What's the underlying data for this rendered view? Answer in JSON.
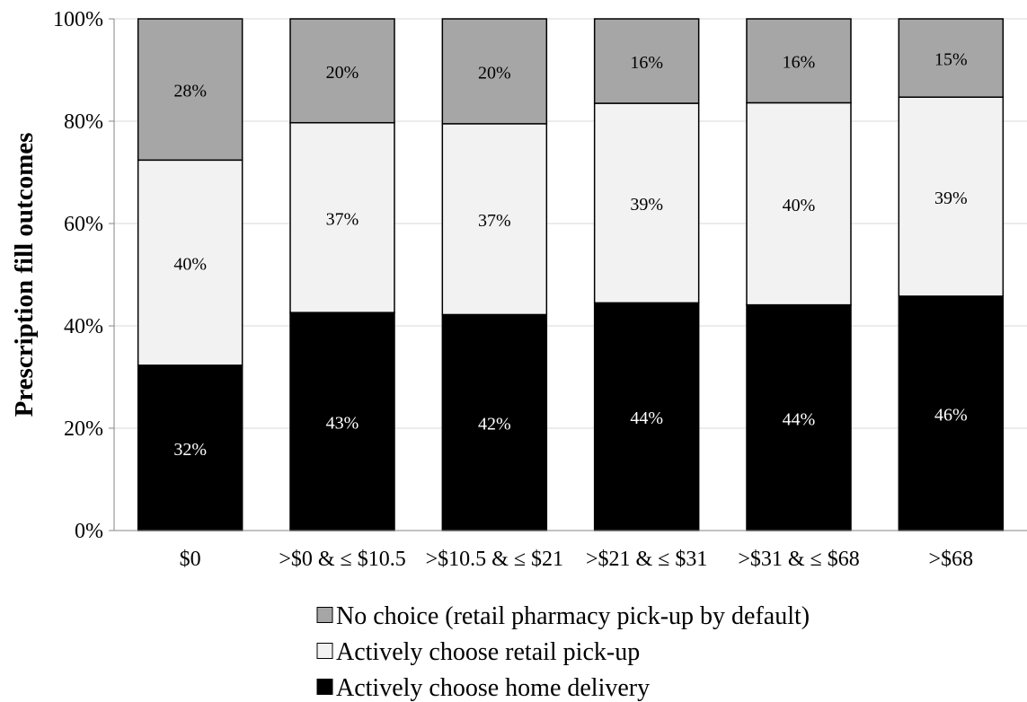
{
  "chart_data": {
    "type": "bar",
    "stacked": true,
    "percent": true,
    "ylabel": "Prescription fill outcomes",
    "xlabel": "",
    "ylim": [
      0,
      100
    ],
    "yticks": [
      "0%",
      "20%",
      "40%",
      "60%",
      "80%",
      "100%"
    ],
    "grid": true,
    "legend_position": "bottom",
    "categories": [
      "$0",
      ">$0 & ≤ $10.5",
      ">$10.5 & ≤ $21",
      ">$21 & ≤ $31",
      ">$31 & ≤ $68",
      ">$68"
    ],
    "series": [
      {
        "name": "Actively choose home delivery",
        "color": "#000000",
        "label_color": "#ffffff",
        "values": [
          32.3,
          42.6,
          42.2,
          44.5,
          44.1,
          45.8
        ],
        "labels": [
          "32%",
          "43%",
          "42%",
          "44%",
          "44%",
          "46%"
        ]
      },
      {
        "name": "Actively choose retail pick-up",
        "color": "#f2f2f2",
        "label_color": "#000000",
        "values": [
          40.1,
          37.1,
          37.3,
          39.0,
          39.5,
          38.9
        ],
        "labels": [
          "40%",
          "37%",
          "37%",
          "39%",
          "40%",
          "39%"
        ]
      },
      {
        "name": "No choice (retail pharmacy pick-up by default)",
        "color": "#a6a6a6",
        "label_color": "#000000",
        "values": [
          27.6,
          20.3,
          20.5,
          16.5,
          16.4,
          15.3
        ],
        "labels": [
          "28%",
          "20%",
          "20%",
          "16%",
          "16%",
          "15%"
        ]
      }
    ],
    "legend_order": [
      "No choice (retail pharmacy pick-up by default)",
      "Actively choose retail pick-up",
      "Actively choose home delivery"
    ]
  }
}
